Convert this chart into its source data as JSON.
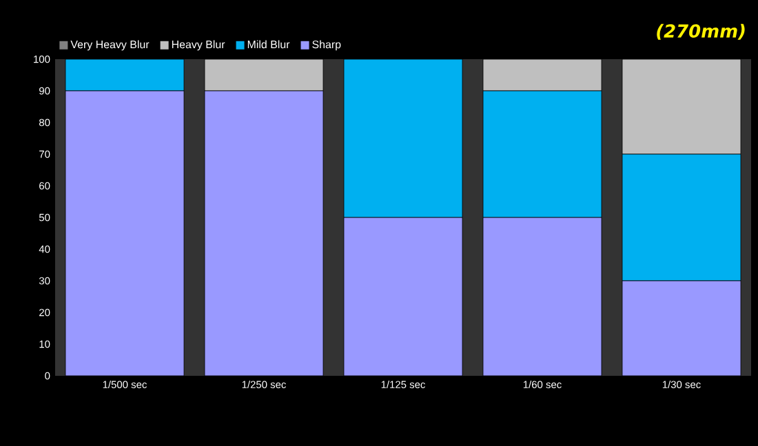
{
  "chart_data": {
    "type": "bar",
    "stacked": true,
    "title": "(270mm)",
    "categories": [
      "1/500 sec",
      "1/250 sec",
      "1/125 sec",
      "1/60 sec",
      "1/30 sec"
    ],
    "series": [
      {
        "name": "Sharp",
        "color": "#9999ff",
        "values": [
          90,
          90,
          50,
          50,
          30
        ]
      },
      {
        "name": "Mild Blur",
        "color": "#00b0f0",
        "values": [
          10,
          0,
          50,
          40,
          40
        ]
      },
      {
        "name": "Heavy Blur",
        "color": "#bfbfbf",
        "values": [
          0,
          10,
          0,
          10,
          30
        ]
      },
      {
        "name": "Very Heavy Blur",
        "color": "#808080",
        "values": [
          0,
          0,
          0,
          0,
          0
        ]
      }
    ],
    "ylim": [
      0,
      100
    ],
    "yticks": [
      0,
      10,
      20,
      30,
      40,
      50,
      60,
      70,
      80,
      90,
      100
    ],
    "grid": false,
    "legend": "top left"
  }
}
